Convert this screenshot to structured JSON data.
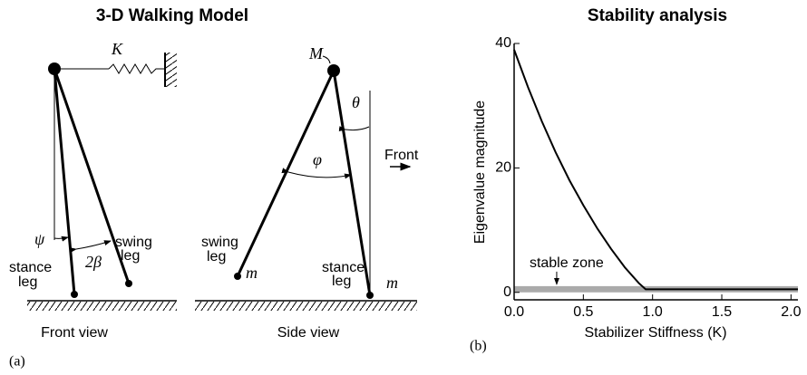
{
  "panel_a": {
    "title": "3-D Walking Model",
    "label": "(a)",
    "front_view": {
      "caption": "Front view",
      "spring": "K",
      "psi": "ψ",
      "angle": "2β",
      "swing_leg": [
        "swing",
        "leg"
      ],
      "stance_leg": [
        "stance",
        "leg"
      ]
    },
    "side_view": {
      "caption": "Side view",
      "hip_mass": "M",
      "theta": "θ",
      "phi": "φ",
      "direction": "Front",
      "swing_leg": [
        "swing",
        "leg"
      ],
      "swing_foot_mass": "m",
      "stance_leg": [
        "stance",
        "leg"
      ],
      "stance_foot_mass": "m"
    }
  },
  "chart_data": {
    "type": "line",
    "label": "(b)",
    "title": "Stability analysis",
    "x_label": "Stabilizer Stiffness (K)",
    "y_label": "Eigenvalue magnitude",
    "x": [
      0,
      0.1,
      0.2,
      0.3,
      0.4,
      0.5,
      0.6,
      0.7,
      0.8,
      0.9,
      0.95,
      1.0,
      1.5,
      2.0,
      2.05
    ],
    "series": [
      {
        "color": "#000000",
        "values": [
          39,
          33,
          27.5,
          22.5,
          18,
          14,
          10.3,
          7,
          4,
          1.5,
          0.5,
          0.5,
          0.5,
          0.5,
          0.5
        ]
      }
    ],
    "shaded_region": {
      "label": "stable zone",
      "y": [
        0,
        1
      ],
      "color": "#aaaaaa"
    },
    "xlim": [
      0,
      2.05
    ],
    "ylim": [
      -1.2,
      40
    ],
    "xticks": [
      {
        "value": 0,
        "label": "0.0"
      },
      0.5,
      {
        "value": 1,
        "label": "1.0"
      },
      1.5,
      {
        "value": 2,
        "label": "2.0"
      }
    ],
    "yticks": [
      0,
      20,
      40
    ]
  }
}
